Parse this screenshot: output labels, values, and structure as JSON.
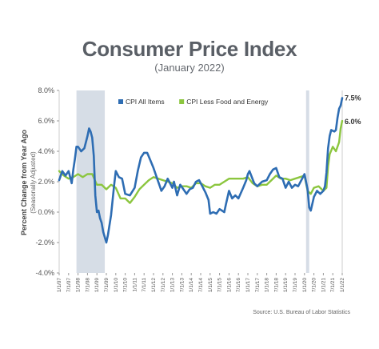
{
  "chart_data": {
    "type": "line",
    "title": "Consumer Price Index",
    "subtitle": "(January 2022)",
    "ylabel": "Percent Change from Year Ago",
    "ylabel_sub": "(Seasonally Adjusted)",
    "xlabel": "",
    "ylim": [
      -4.0,
      8.0
    ],
    "yticks": [
      -4.0,
      -2.0,
      0.0,
      2.0,
      4.0,
      6.0,
      8.0
    ],
    "ytick_labels": [
      "-4.0%",
      "-2.0%",
      "0.0%",
      "2.0%",
      "4.0%",
      "6.0%",
      "8.0%"
    ],
    "xticks": [
      [
        "1/1/07",
        0
      ],
      [
        "7/1/07",
        6
      ],
      [
        "1/1/08",
        12
      ],
      [
        "7/1/08",
        18
      ],
      [
        "1/1/09",
        24
      ],
      [
        "7/1/09",
        30
      ],
      [
        "1/1/10",
        36
      ],
      [
        "7/1/10",
        42
      ],
      [
        "1/1/11",
        48
      ],
      [
        "7/1/11",
        54
      ],
      [
        "1/1/12",
        60
      ],
      [
        "7/1/12",
        66
      ],
      [
        "1/1/13",
        72
      ],
      [
        "7/1/13",
        78
      ],
      [
        "1/1/14",
        84
      ],
      [
        "7/1/14",
        90
      ],
      [
        "1/1/15",
        96
      ],
      [
        "7/1/15",
        102
      ],
      [
        "1/1/16",
        108
      ],
      [
        "7/1/16",
        114
      ],
      [
        "1/1/17",
        120
      ],
      [
        "7/1/17",
        126
      ],
      [
        "1/1/18",
        132
      ],
      [
        "7/1/18",
        138
      ],
      [
        "1/1/19",
        144
      ],
      [
        "7/1/19",
        150
      ],
      [
        "1/1/20",
        156
      ],
      [
        "7/1/20",
        162
      ],
      [
        "1/1/21",
        168
      ],
      [
        "7/1/21",
        174
      ],
      [
        "1/1/22",
        180
      ]
    ],
    "recessions": [
      [
        11,
        29
      ],
      [
        157,
        159
      ]
    ],
    "legend_position": "top-left",
    "grid": false,
    "series": [
      {
        "name": "CPI All Items",
        "color": "#2e6db3",
        "end_label": "7.5%",
        "points": [
          [
            0,
            2.1
          ],
          [
            2,
            2.7
          ],
          [
            4,
            2.4
          ],
          [
            6,
            2.7
          ],
          [
            8,
            1.9
          ],
          [
            9,
            2.8
          ],
          [
            10,
            3.5
          ],
          [
            11,
            4.3
          ],
          [
            12,
            4.3
          ],
          [
            14,
            4.0
          ],
          [
            16,
            4.2
          ],
          [
            18,
            5.0
          ],
          [
            19,
            5.5
          ],
          [
            20,
            5.3
          ],
          [
            21,
            4.9
          ],
          [
            22,
            3.7
          ],
          [
            23,
            1.1
          ],
          [
            24,
            0.0
          ],
          [
            25,
            0.1
          ],
          [
            26,
            -0.4
          ],
          [
            27,
            -0.7
          ],
          [
            28,
            -1.3
          ],
          [
            30,
            -2.0
          ],
          [
            31,
            -1.5
          ],
          [
            33,
            -0.2
          ],
          [
            35,
            1.8
          ],
          [
            36,
            2.7
          ],
          [
            38,
            2.3
          ],
          [
            40,
            2.2
          ],
          [
            42,
            1.2
          ],
          [
            45,
            1.1
          ],
          [
            48,
            1.6
          ],
          [
            50,
            2.7
          ],
          [
            52,
            3.6
          ],
          [
            54,
            3.9
          ],
          [
            56,
            3.9
          ],
          [
            58,
            3.4
          ],
          [
            60,
            2.9
          ],
          [
            62,
            2.3
          ],
          [
            64,
            1.7
          ],
          [
            65,
            1.4
          ],
          [
            67,
            1.7
          ],
          [
            69,
            2.2
          ],
          [
            70,
            2.0
          ],
          [
            72,
            1.6
          ],
          [
            73,
            2.0
          ],
          [
            75,
            1.1
          ],
          [
            77,
            1.8
          ],
          [
            79,
            1.5
          ],
          [
            81,
            1.2
          ],
          [
            83,
            1.5
          ],
          [
            85,
            1.6
          ],
          [
            87,
            2.0
          ],
          [
            89,
            2.1
          ],
          [
            91,
            1.7
          ],
          [
            93,
            1.3
          ],
          [
            95,
            0.8
          ],
          [
            96,
            -0.1
          ],
          [
            98,
            0.0
          ],
          [
            100,
            -0.1
          ],
          [
            102,
            0.2
          ],
          [
            105,
            0.0
          ],
          [
            106,
            0.5
          ],
          [
            108,
            1.4
          ],
          [
            110,
            0.9
          ],
          [
            112,
            1.1
          ],
          [
            114,
            0.9
          ],
          [
            117,
            1.6
          ],
          [
            119,
            2.1
          ],
          [
            120,
            2.5
          ],
          [
            121,
            2.7
          ],
          [
            124,
            1.9
          ],
          [
            126,
            1.7
          ],
          [
            129,
            2.0
          ],
          [
            132,
            2.1
          ],
          [
            134,
            2.5
          ],
          [
            136,
            2.8
          ],
          [
            138,
            2.9
          ],
          [
            140,
            2.3
          ],
          [
            142,
            2.2
          ],
          [
            144,
            1.6
          ],
          [
            146,
            2.0
          ],
          [
            148,
            1.6
          ],
          [
            150,
            1.8
          ],
          [
            152,
            1.7
          ],
          [
            154,
            2.1
          ],
          [
            156,
            2.5
          ],
          [
            158,
            1.5
          ],
          [
            159,
            0.3
          ],
          [
            160,
            0.1
          ],
          [
            162,
            1.0
          ],
          [
            164,
            1.4
          ],
          [
            166,
            1.2
          ],
          [
            168,
            1.4
          ],
          [
            169,
            1.7
          ],
          [
            170,
            2.6
          ],
          [
            171,
            4.2
          ],
          [
            172,
            5.0
          ],
          [
            173,
            5.4
          ],
          [
            175,
            5.3
          ],
          [
            176,
            5.4
          ],
          [
            177,
            6.2
          ],
          [
            178,
            6.8
          ],
          [
            179,
            7.0
          ],
          [
            180,
            7.5
          ]
        ]
      },
      {
        "name": "CPI Less Food and Energy",
        "color": "#8cc63f",
        "end_label": "6.0%",
        "points": [
          [
            0,
            2.7
          ],
          [
            3,
            2.4
          ],
          [
            6,
            2.2
          ],
          [
            9,
            2.3
          ],
          [
            12,
            2.5
          ],
          [
            15,
            2.3
          ],
          [
            18,
            2.5
          ],
          [
            21,
            2.5
          ],
          [
            24,
            1.8
          ],
          [
            27,
            1.8
          ],
          [
            30,
            1.5
          ],
          [
            33,
            1.8
          ],
          [
            36,
            1.6
          ],
          [
            39,
            0.9
          ],
          [
            42,
            0.9
          ],
          [
            45,
            0.6
          ],
          [
            48,
            1.0
          ],
          [
            51,
            1.5
          ],
          [
            54,
            1.8
          ],
          [
            57,
            2.1
          ],
          [
            60,
            2.3
          ],
          [
            63,
            2.2
          ],
          [
            66,
            2.1
          ],
          [
            69,
            2.0
          ],
          [
            72,
            1.9
          ],
          [
            75,
            1.6
          ],
          [
            78,
            1.7
          ],
          [
            81,
            1.7
          ],
          [
            84,
            1.6
          ],
          [
            87,
            1.9
          ],
          [
            90,
            1.9
          ],
          [
            93,
            1.7
          ],
          [
            96,
            1.6
          ],
          [
            99,
            1.8
          ],
          [
            102,
            1.8
          ],
          [
            105,
            2.0
          ],
          [
            108,
            2.2
          ],
          [
            111,
            2.2
          ],
          [
            114,
            2.2
          ],
          [
            117,
            2.2
          ],
          [
            120,
            2.3
          ],
          [
            123,
            1.9
          ],
          [
            126,
            1.7
          ],
          [
            129,
            1.8
          ],
          [
            132,
            1.8
          ],
          [
            135,
            2.1
          ],
          [
            138,
            2.4
          ],
          [
            141,
            2.2
          ],
          [
            144,
            2.2
          ],
          [
            147,
            2.1
          ],
          [
            150,
            2.2
          ],
          [
            153,
            2.3
          ],
          [
            156,
            2.4
          ],
          [
            158,
            1.4
          ],
          [
            160,
            1.2
          ],
          [
            162,
            1.6
          ],
          [
            165,
            1.7
          ],
          [
            168,
            1.4
          ],
          [
            170,
            1.6
          ],
          [
            171,
            3.0
          ],
          [
            172,
            3.8
          ],
          [
            174,
            4.3
          ],
          [
            176,
            4.0
          ],
          [
            178,
            4.6
          ],
          [
            179,
            5.5
          ],
          [
            180,
            6.0
          ]
        ]
      }
    ],
    "source": "Source: U.S. Bureau of Labor Statistics"
  }
}
